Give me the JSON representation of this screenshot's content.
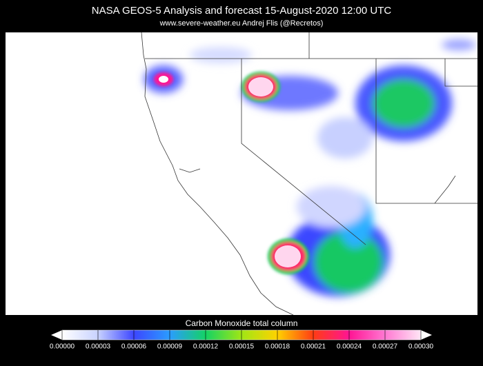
{
  "header": {
    "title": "NASA GEOS-5 Analysis and forecast     15-August-2020 12:00 UTC",
    "subtitle": "www.severe-weather.eu   Andrej Flis (@Recretos)"
  },
  "colorbar": {
    "label": "Carbon Monoxide total column",
    "lim": [
      0,
      0.0003
    ],
    "ticks": [
      {
        "value": 0,
        "label": "0.00000"
      },
      {
        "value": 3e-05,
        "label": "0.00003"
      },
      {
        "value": 6e-05,
        "label": "0.00006"
      },
      {
        "value": 9e-05,
        "label": "0.00009"
      },
      {
        "value": 0.00012,
        "label": "0.00012"
      },
      {
        "value": 0.00015,
        "label": "0.00015"
      },
      {
        "value": 0.00018,
        "label": "0.00018"
      },
      {
        "value": 0.00021,
        "label": "0.00021"
      },
      {
        "value": 0.00024,
        "label": "0.00024"
      },
      {
        "value": 0.00027,
        "label": "0.00027"
      },
      {
        "value": 0.0003,
        "label": "0.00030"
      }
    ]
  }
}
